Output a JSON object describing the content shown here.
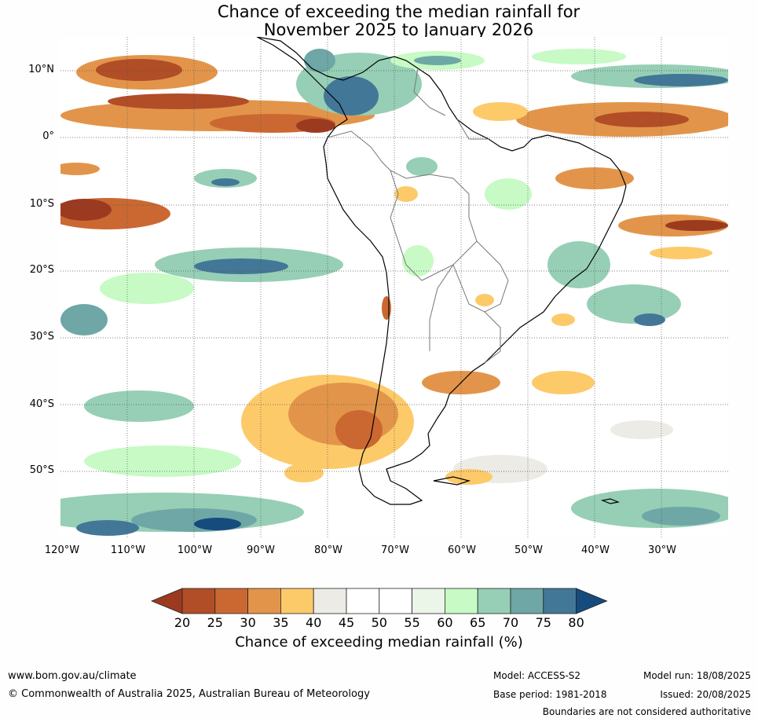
{
  "title": {
    "line1": "Chance of exceeding the median rainfall for",
    "line2": "November 2025 to January 2026"
  },
  "map": {
    "lat_labels": [
      "10°N",
      "0°",
      "10°S",
      "20°S",
      "30°S",
      "40°S",
      "50°S"
    ],
    "lon_labels": [
      "120°W",
      "110°W",
      "100°W",
      "90°W",
      "80°W",
      "70°W",
      "60°W",
      "50°W",
      "40°W",
      "30°W"
    ],
    "extent": {
      "lon": [
        -120,
        -20
      ],
      "lat": [
        -60,
        15
      ]
    }
  },
  "colorbar": {
    "label": "Chance of exceeding median rainfall (%)",
    "ticks": [
      "20",
      "25",
      "30",
      "35",
      "40",
      "45",
      "50",
      "55",
      "60",
      "65",
      "70",
      "75",
      "80"
    ],
    "colors": [
      "#9c3a20",
      "#b14d27",
      "#cb6832",
      "#e2954a",
      "#fdca6a",
      "#ecebe6",
      "#ffffff",
      "#ffffff",
      "#ecf6e8",
      "#c7fac5",
      "#96cfb5",
      "#6ea7a5",
      "#437798",
      "#164b7e"
    ]
  },
  "footer": {
    "website": "www.bom.gov.au/climate",
    "copyright": "© Commonwealth of Australia 2025, Australian Bureau of Meteorology",
    "model": "Model: ACCESS-S2",
    "base_period": "Base period: 1981-2018",
    "model_run": "Model run: 18/08/2025",
    "issued": "Issued: 20/08/2025",
    "disclaimer": "Boundaries are not considered authoritative"
  }
}
